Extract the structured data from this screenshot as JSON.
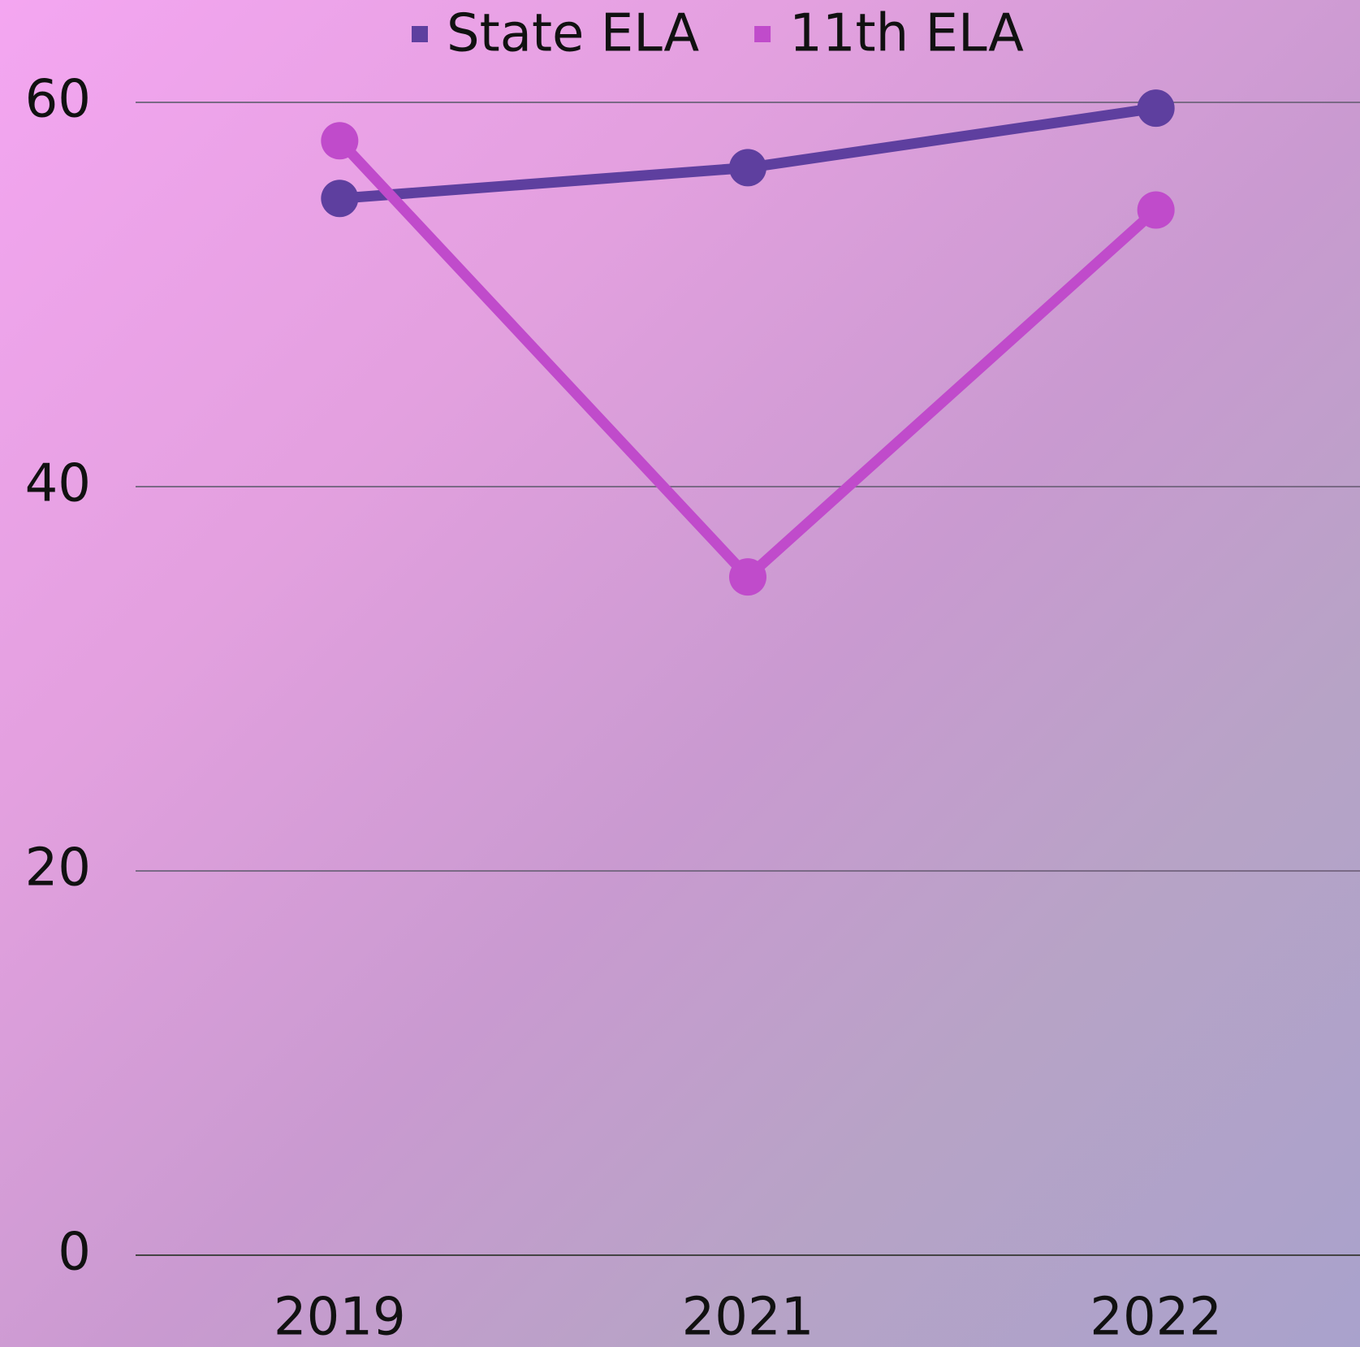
{
  "chart_data": {
    "type": "line",
    "categories": [
      "2019",
      "2021",
      "2022"
    ],
    "series": [
      {
        "name": "State ELA",
        "color": "#5e3f9f",
        "values": [
          55.0,
          56.6,
          59.7
        ]
      },
      {
        "name": "11th ELA",
        "color": "#c04bcb",
        "values": [
          58.0,
          35.3,
          54.4
        ]
      }
    ],
    "ylim": [
      0,
      60
    ],
    "yticks": [
      0,
      20,
      40,
      60
    ],
    "grid": true,
    "legend": "top"
  }
}
